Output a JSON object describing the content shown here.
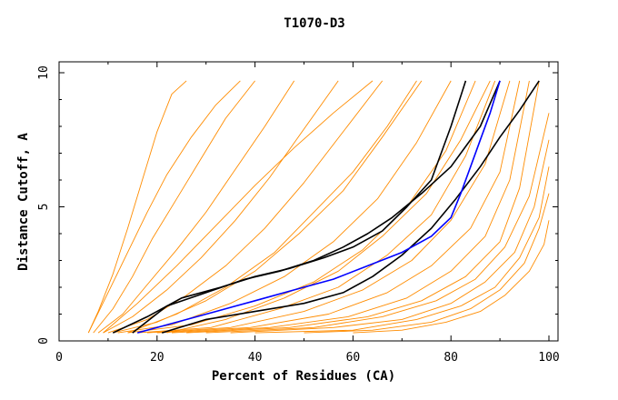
{
  "chart_data": {
    "type": "line",
    "title": "T1070-D3",
    "xlabel": "Percent of Residues (CA)",
    "ylabel": "Distance Cutoff, A",
    "xlim": [
      0,
      100
    ],
    "ylim": [
      0,
      10
    ],
    "x_ticks": [
      "0",
      "20",
      "40",
      "60",
      "80",
      "100"
    ],
    "y_ticks": [
      "0",
      "5",
      "10"
    ],
    "grid": false,
    "colors": {
      "background_models": "#ff8c00",
      "highlight": "#0000ff",
      "reference": "#000000"
    },
    "series": [
      {
        "role": "background",
        "color": "#ff8c00",
        "x": [
          6,
          8,
          11,
          14,
          17,
          20,
          23,
          26
        ],
        "y": [
          0.3,
          1.1,
          2.5,
          4.2,
          6.0,
          7.8,
          9.2,
          9.7
        ]
      },
      {
        "role": "background",
        "color": "#ff8c00",
        "x": [
          7,
          11,
          15,
          19,
          24,
          29,
          34,
          40
        ],
        "y": [
          0.3,
          1.2,
          2.4,
          3.8,
          5.3,
          6.8,
          8.3,
          9.7
        ]
      },
      {
        "role": "background",
        "color": "#ff8c00",
        "x": [
          8,
          13,
          18,
          24,
          30,
          36,
          42,
          48
        ],
        "y": [
          0.3,
          1.0,
          2.1,
          3.4,
          4.8,
          6.4,
          8.0,
          9.7
        ]
      },
      {
        "role": "background",
        "color": "#ff8c00",
        "x": [
          9,
          15,
          22,
          29,
          36,
          43,
          50,
          57
        ],
        "y": [
          0.3,
          0.9,
          1.9,
          3.1,
          4.5,
          6.1,
          7.9,
          9.7
        ]
      },
      {
        "role": "background",
        "color": "#ff8c00",
        "x": [
          10,
          18,
          26,
          34,
          42,
          50,
          58,
          66
        ],
        "y": [
          0.3,
          0.8,
          1.7,
          2.8,
          4.2,
          5.9,
          7.8,
          9.7
        ]
      },
      {
        "role": "background",
        "color": "#ff8c00",
        "x": [
          11,
          20,
          30,
          40,
          49,
          58,
          66,
          74
        ],
        "y": [
          0.3,
          0.7,
          1.5,
          2.6,
          4.0,
          5.6,
          7.6,
          9.7
        ]
      },
      {
        "role": "background",
        "color": "#ff8c00",
        "x": [
          12,
          23,
          35,
          46,
          56,
          65,
          73,
          80
        ],
        "y": [
          0.3,
          0.6,
          1.4,
          2.4,
          3.7,
          5.3,
          7.4,
          9.7
        ]
      },
      {
        "role": "background",
        "color": "#ff8c00",
        "x": [
          14,
          27,
          40,
          52,
          62,
          71,
          79,
          85
        ],
        "y": [
          0.3,
          0.6,
          1.3,
          2.2,
          3.4,
          5.0,
          7.1,
          9.7
        ]
      },
      {
        "role": "background",
        "color": "#ff8c00",
        "x": [
          16,
          31,
          45,
          57,
          67,
          76,
          83,
          89
        ],
        "y": [
          0.3,
          0.5,
          1.2,
          2.0,
          3.2,
          4.7,
          6.9,
          9.7
        ]
      },
      {
        "role": "background",
        "color": "#ff8c00",
        "x": [
          18,
          35,
          50,
          62,
          72,
          80,
          87,
          92
        ],
        "y": [
          0.3,
          0.5,
          1.1,
          1.9,
          3.0,
          4.5,
          6.6,
          9.7
        ]
      },
      {
        "role": "background",
        "color": "#ff8c00",
        "x": [
          20,
          39,
          55,
          67,
          76,
          84,
          90,
          94
        ],
        "y": [
          0.3,
          0.5,
          1.0,
          1.8,
          2.8,
          4.2,
          6.3,
          9.7
        ]
      },
      {
        "role": "background",
        "color": "#ff8c00",
        "x": [
          23,
          43,
          59,
          71,
          80,
          87,
          92,
          96
        ],
        "y": [
          0.3,
          0.5,
          0.9,
          1.6,
          2.6,
          3.9,
          6.0,
          9.7
        ]
      },
      {
        "role": "background",
        "color": "#ff8c00",
        "x": [
          26,
          47,
          63,
          74,
          83,
          90,
          94,
          98
        ],
        "y": [
          0.3,
          0.5,
          0.9,
          1.5,
          2.4,
          3.7,
          5.7,
          9.7
        ]
      },
      {
        "role": "background",
        "color": "#ff8c00",
        "x": [
          30,
          52,
          66,
          77,
          85,
          91,
          96,
          100
        ],
        "y": [
          0.3,
          0.5,
          0.9,
          1.5,
          2.3,
          3.5,
          5.4,
          8.5
        ]
      },
      {
        "role": "background",
        "color": "#ff8c00",
        "x": [
          35,
          56,
          70,
          80,
          87,
          93,
          97,
          100
        ],
        "y": [
          0.3,
          0.5,
          0.8,
          1.4,
          2.2,
          3.3,
          5.0,
          7.5
        ]
      },
      {
        "role": "background",
        "color": "#ff8c00",
        "x": [
          40,
          60,
          73,
          82,
          89,
          94,
          98,
          100
        ],
        "y": [
          0.3,
          0.4,
          0.8,
          1.3,
          2.0,
          3.1,
          4.6,
          6.5
        ]
      },
      {
        "role": "background",
        "color": "#ff8c00",
        "x": [
          50,
          64,
          76,
          84,
          90,
          95,
          98,
          100
        ],
        "y": [
          0.3,
          0.4,
          0.7,
          1.2,
          1.9,
          2.9,
          4.2,
          5.5
        ]
      },
      {
        "role": "background",
        "color": "#ff8c00",
        "x": [
          60,
          70,
          79,
          86,
          91,
          96,
          99,
          100
        ],
        "y": [
          0.3,
          0.4,
          0.7,
          1.1,
          1.7,
          2.6,
          3.6,
          4.5
        ]
      },
      {
        "role": "background",
        "color": "#ff8c00",
        "x": [
          14,
          24,
          34,
          44,
          52,
          60,
          67,
          73
        ],
        "y": [
          0.3,
          1.0,
          2.0,
          3.3,
          4.8,
          6.3,
          8.0,
          9.7
        ]
      },
      {
        "role": "background",
        "color": "#ff8c00",
        "x": [
          22,
          34,
          46,
          57,
          66,
          75,
          82,
          88
        ],
        "y": [
          0.3,
          0.8,
          1.6,
          2.6,
          3.9,
          5.5,
          7.5,
          9.7
        ]
      },
      {
        "role": "background",
        "color": "#ff8c00",
        "x": [
          9,
          16,
          24,
          32,
          40,
          48,
          56,
          64
        ],
        "y": [
          0.3,
          1.4,
          2.8,
          4.3,
          5.8,
          7.2,
          8.5,
          9.7
        ]
      },
      {
        "role": "background",
        "color": "#ff8c00",
        "x": [
          6,
          10,
          14,
          18,
          22,
          27,
          32,
          37
        ],
        "y": [
          0.3,
          1.8,
          3.3,
          4.8,
          6.2,
          7.6,
          8.8,
          9.7
        ]
      },
      {
        "role": "reference",
        "color": "#000000",
        "x": [
          11,
          18,
          25,
          33,
          40,
          47,
          54,
          60,
          66,
          71,
          76,
          80,
          83
        ],
        "y": [
          0.3,
          0.9,
          1.6,
          2.0,
          2.4,
          2.7,
          3.1,
          3.5,
          4.1,
          5.0,
          6.0,
          8.0,
          9.7
        ]
      },
      {
        "role": "reference",
        "color": "#000000",
        "x": [
          15,
          22,
          30,
          38,
          45,
          52,
          58,
          63,
          68,
          74,
          80,
          86,
          90
        ],
        "y": [
          0.3,
          1.3,
          1.8,
          2.3,
          2.6,
          3.0,
          3.5,
          4.0,
          4.6,
          5.5,
          6.5,
          8.0,
          9.7
        ]
      },
      {
        "role": "reference",
        "color": "#000000",
        "x": [
          21,
          30,
          40,
          50,
          58,
          64,
          70,
          76,
          81,
          86,
          90,
          94,
          98
        ],
        "y": [
          0.3,
          0.8,
          1.1,
          1.4,
          1.8,
          2.4,
          3.2,
          4.2,
          5.3,
          6.5,
          7.6,
          8.6,
          9.7
        ]
      },
      {
        "role": "highlight",
        "color": "#0000ff",
        "x": [
          16,
          24,
          32,
          40,
          48,
          56,
          63,
          70,
          76,
          80,
          82,
          84,
          86,
          88,
          90
        ],
        "y": [
          0.3,
          0.7,
          1.1,
          1.5,
          1.9,
          2.3,
          2.8,
          3.3,
          3.9,
          4.6,
          5.5,
          6.5,
          7.5,
          8.5,
          9.7
        ]
      }
    ]
  }
}
